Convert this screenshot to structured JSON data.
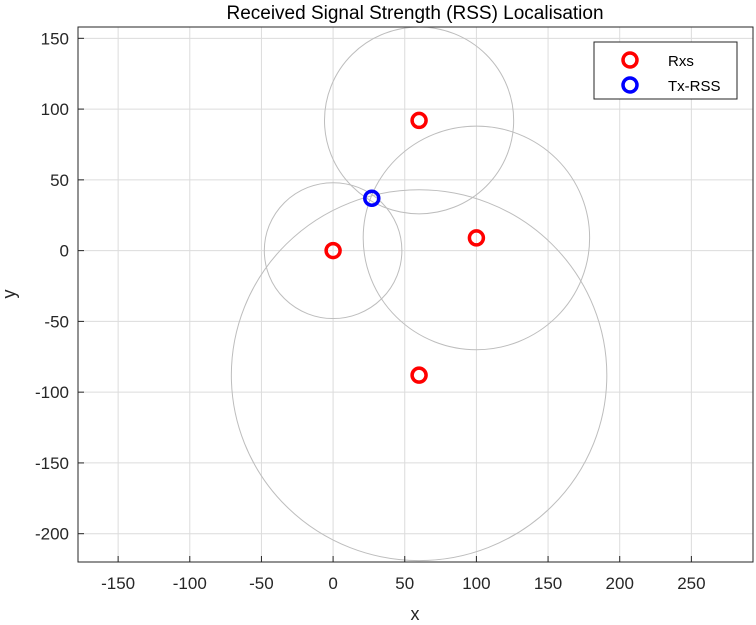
{
  "chart_data": {
    "type": "scatter",
    "title": "Received Signal Strength (RSS) Localisation",
    "xlabel": "x",
    "ylabel": "y",
    "xlim": [
      -178,
      293
    ],
    "ylim": [
      -220,
      158
    ],
    "xticks": [
      -150,
      -100,
      -50,
      0,
      50,
      100,
      150,
      200,
      250
    ],
    "yticks": [
      150,
      100,
      50,
      0,
      -50,
      -100,
      -150,
      -200
    ],
    "grid": true,
    "legend_position": "top-right",
    "series": [
      {
        "name": "Rxs",
        "color": "#ff0000",
        "marker": "open-circle",
        "points": [
          {
            "x": 0,
            "y": 0
          },
          {
            "x": 60,
            "y": 92
          },
          {
            "x": 100,
            "y": 9
          },
          {
            "x": 60,
            "y": -88
          }
        ]
      },
      {
        "name": "Tx-RSS",
        "color": "#0000ff",
        "marker": "open-circle",
        "points": [
          {
            "x": 27,
            "y": 37
          }
        ]
      }
    ],
    "range_circles": {
      "color": "#bdbdbd",
      "items": [
        {
          "cx": 0,
          "cy": 0,
          "r": 48
        },
        {
          "cx": 60,
          "cy": 92,
          "r": 66
        },
        {
          "cx": 100,
          "cy": 9,
          "r": 79
        },
        {
          "cx": 60,
          "cy": -88,
          "r": 131
        }
      ]
    }
  }
}
